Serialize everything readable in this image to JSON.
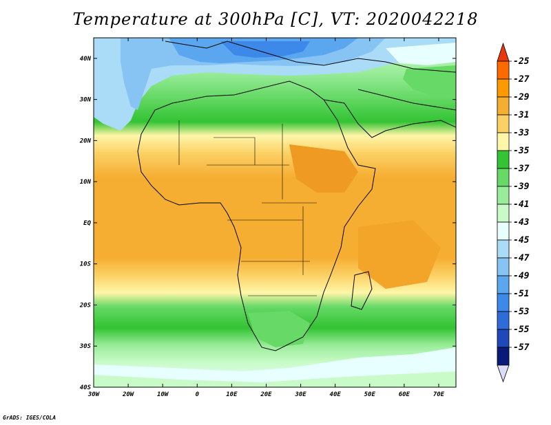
{
  "title": "Temperature at 300hPa [C], VT: 2020042218",
  "credit": "GrADS: IGES/COLA",
  "map": {
    "projection": "latlon",
    "lon_range": [
      -30,
      75
    ],
    "lat_range": [
      -40,
      45
    ],
    "lat_ticks": [
      {
        "value": 40,
        "label": "40N"
      },
      {
        "value": 30,
        "label": "30N"
      },
      {
        "value": 20,
        "label": "20N"
      },
      {
        "value": 10,
        "label": "10N"
      },
      {
        "value": 0,
        "label": "EQ"
      },
      {
        "value": -10,
        "label": "10S"
      },
      {
        "value": -20,
        "label": "20S"
      },
      {
        "value": -30,
        "label": "30S"
      },
      {
        "value": -40,
        "label": "40S"
      }
    ],
    "lon_ticks": [
      {
        "value": -30,
        "label": "30W"
      },
      {
        "value": -20,
        "label": "20W"
      },
      {
        "value": -10,
        "label": "10W"
      },
      {
        "value": 0,
        "label": "0"
      },
      {
        "value": 10,
        "label": "10E"
      },
      {
        "value": 20,
        "label": "20E"
      },
      {
        "value": 30,
        "label": "30E"
      },
      {
        "value": 40,
        "label": "40E"
      },
      {
        "value": 50,
        "label": "50E"
      },
      {
        "value": 60,
        "label": "60E"
      },
      {
        "value": 70,
        "label": "70E"
      }
    ]
  },
  "colorbar": {
    "labels": [
      "-25",
      "-27",
      "-29",
      "-31",
      "-33",
      "-35",
      "-37",
      "-39",
      "-41",
      "-43",
      "-45",
      "-47",
      "-49",
      "-51",
      "-53",
      "-55",
      "-57"
    ],
    "colors": [
      "#e8390e",
      "#ff6a00",
      "#ff9900",
      "#f6ae32",
      "#fbd165",
      "#fff6a8",
      "#33c333",
      "#66d966",
      "#99ec99",
      "#c9fbc9",
      "#e8ffff",
      "#aadcf8",
      "#87c4f4",
      "#5aa6ef",
      "#3d89ea",
      "#2e6cd9",
      "#1f48b8",
      "#0a1a78"
    ],
    "over_color": "#e8390e",
    "under_color": "#ddddfa"
  }
}
